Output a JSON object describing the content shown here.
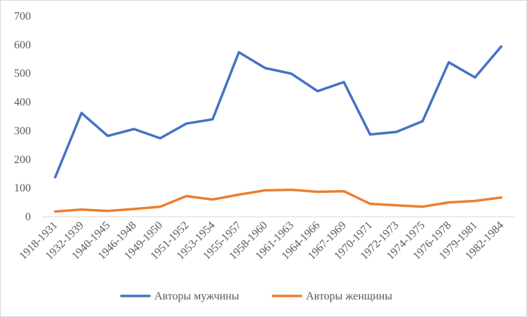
{
  "chart_data": {
    "type": "line",
    "categories": [
      "1918-1931",
      "1932-1939",
      "1940-1945",
      "1946-1948",
      "1949-1950",
      "1951-1952",
      "1953-1954",
      "1955-1957",
      "1958-1960",
      "1961-1963",
      "1964-1966",
      "1967-1969",
      "1970-1971",
      "1972-1973",
      "1974-1975",
      "1976-1978",
      "1979-1981",
      "1982-1984"
    ],
    "series": [
      {
        "name": "Авторы мужчины",
        "color": "#4472C4",
        "values": [
          138,
          362,
          282,
          306,
          274,
          325,
          340,
          574,
          519,
          499,
          438,
          470,
          287,
          296,
          333,
          539,
          486,
          594
        ]
      },
      {
        "name": "Авторы женщины",
        "color": "#ED7D31",
        "values": [
          18,
          25,
          20,
          27,
          35,
          72,
          60,
          77,
          92,
          94,
          87,
          89,
          45,
          40,
          35,
          50,
          55,
          67
        ]
      }
    ],
    "ylim": [
      0,
      700
    ],
    "yticks": [
      0,
      100,
      200,
      300,
      400,
      500,
      600,
      700
    ],
    "grid": false,
    "legend": "bottom"
  }
}
